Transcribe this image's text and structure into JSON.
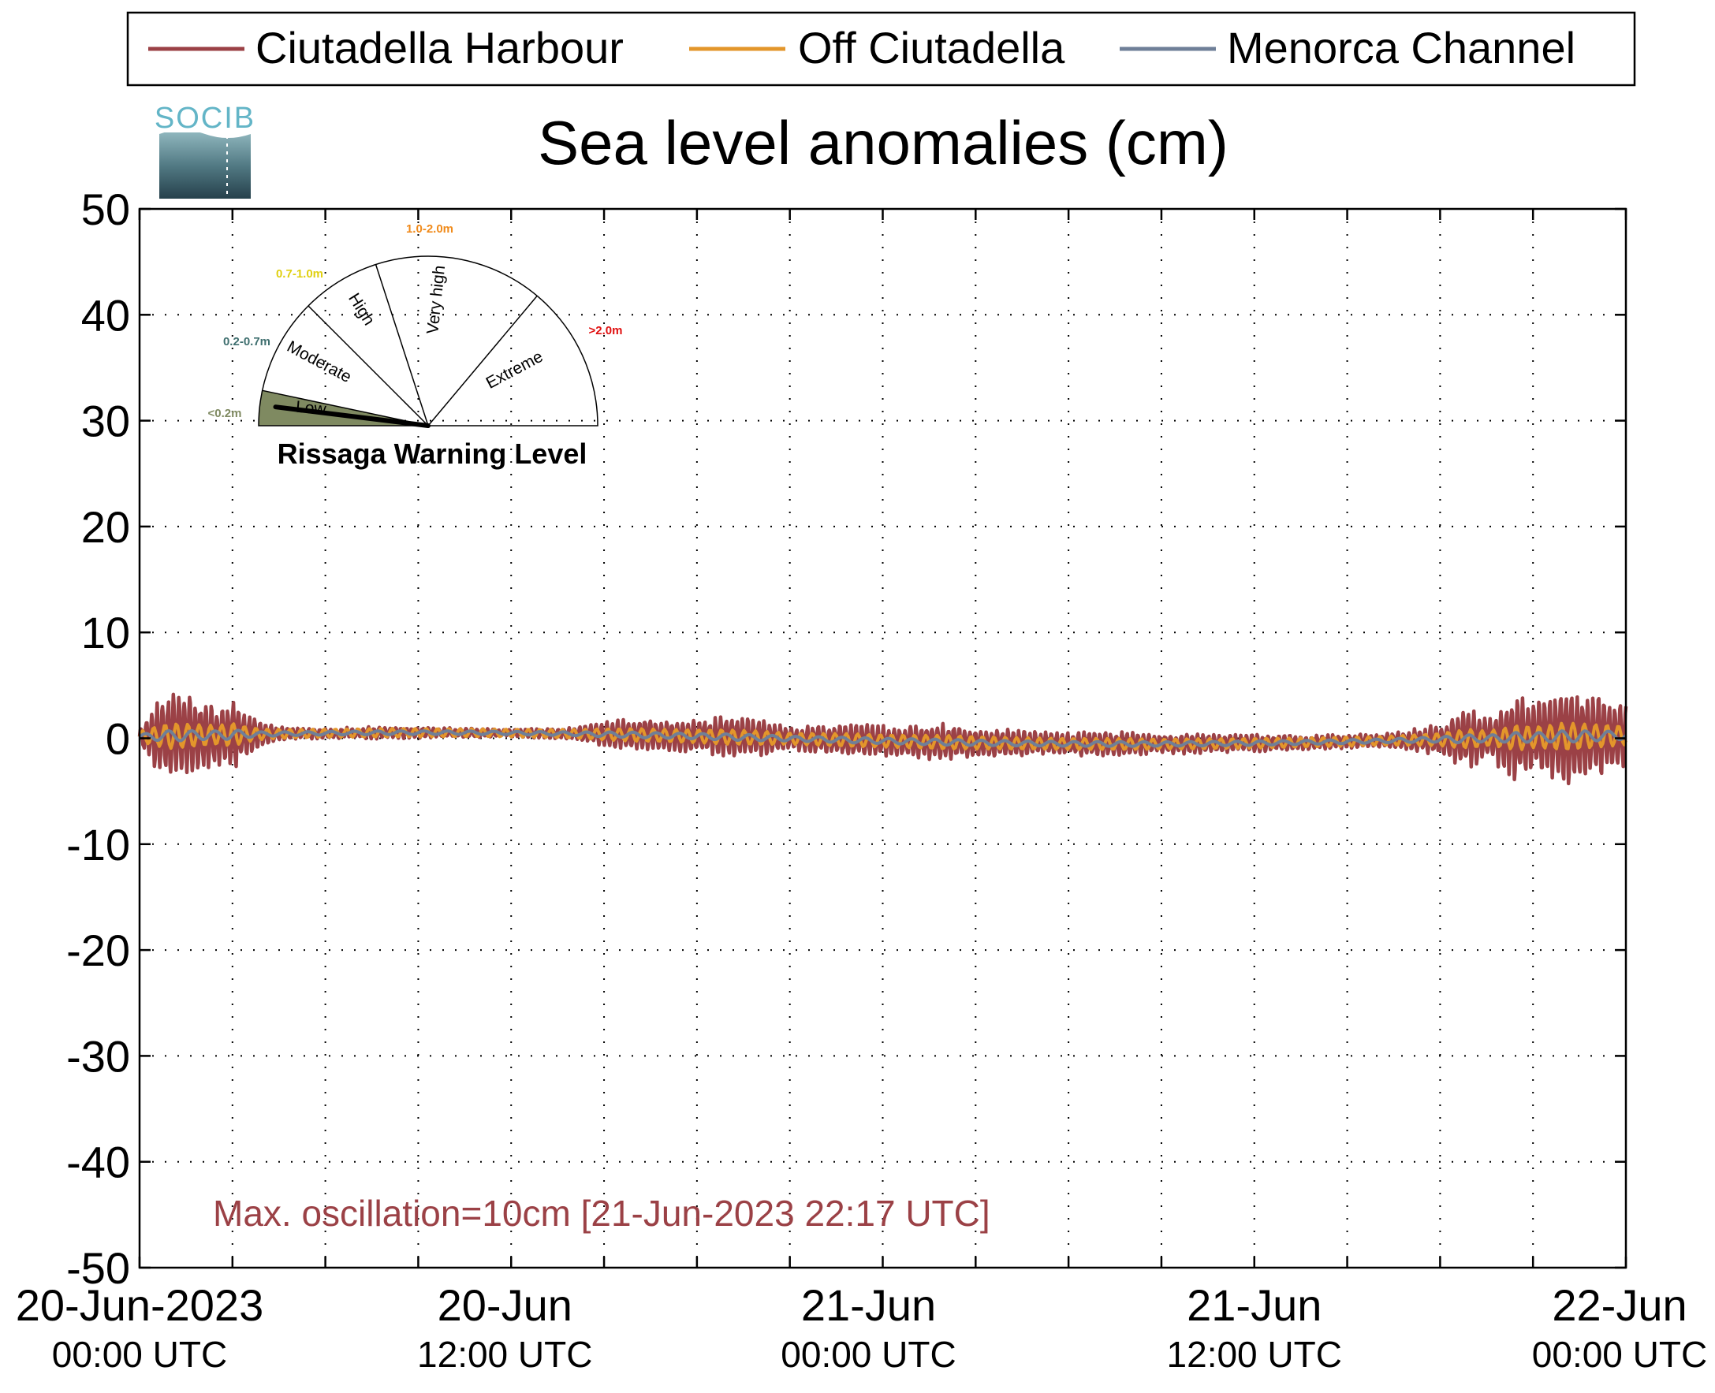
{
  "legend": {
    "entries": [
      {
        "label": "Ciutadella Harbour",
        "color": "#9b4146"
      },
      {
        "label": "Off Ciutadella",
        "color": "#e3962b"
      },
      {
        "label": "Menorca Channel",
        "color": "#6f7f98"
      }
    ],
    "placement": "top"
  },
  "logo": {
    "text": "SOCIB"
  },
  "gauge": {
    "title": "Rissaga Warning Level",
    "level_value": "Low",
    "sectors": [
      {
        "name": "Low",
        "range": "<0.2m",
        "range_color": "#7f8a61",
        "fill": "#7f8a61"
      },
      {
        "name": "Moderate",
        "range": "0.2-0.7m",
        "range_color": "#3f6f6f",
        "fill": "none"
      },
      {
        "name": "High",
        "range": "0.7-1.0m",
        "range_color": "#e0d010",
        "fill": "none"
      },
      {
        "name": "Very high",
        "range": "1.0-2.0m",
        "range_color": "#f08a1a",
        "fill": "none"
      },
      {
        "name": "Extreme",
        "range": ">2.0m",
        "range_color": "#e01010",
        "fill": "none"
      }
    ]
  },
  "annotation": {
    "text": "Max. oscillation=10cm [21-Jun-2023 22:17 UTC]",
    "color": "#9b4146"
  },
  "chart_data": {
    "type": "line",
    "title": "Sea level anomalies (cm)",
    "xlabel": "",
    "ylabel": "",
    "ylim": [
      -50,
      50
    ],
    "yticks": [
      "50",
      "40",
      "30",
      "20",
      "10",
      "0",
      "-10",
      "-20",
      "-30",
      "-40",
      "-50"
    ],
    "xlim_hours": [
      0,
      48
    ],
    "xticks": [
      {
        "hours": 0,
        "line1": "20-Jun-2023",
        "line2": "00:00 UTC"
      },
      {
        "hours": 12,
        "line1": "20-Jun",
        "line2": "12:00 UTC"
      },
      {
        "hours": 24,
        "line1": "21-Jun",
        "line2": "00:00 UTC"
      },
      {
        "hours": 36,
        "line1": "21-Jun",
        "line2": "12:00 UTC"
      },
      {
        "hours": 48,
        "line1": "22-Jun",
        "line2": "00:00 UTC"
      }
    ],
    "grid": true,
    "series": [
      {
        "name": "Ciutadella Harbour",
        "color": "#9b4146",
        "envelope_hours": [
          0,
          0.5,
          1,
          1.5,
          2,
          2.5,
          3,
          3.5,
          4,
          5,
          6,
          8,
          10,
          12,
          14,
          15,
          16,
          17,
          18,
          19,
          20,
          21,
          22,
          23,
          24,
          25,
          26,
          27,
          28,
          29,
          30,
          31,
          32,
          33,
          34,
          35,
          36,
          37,
          38,
          39,
          40,
          41,
          42,
          42.5,
          43,
          43.5,
          44,
          44.5,
          45,
          45.5,
          46,
          46.5,
          47,
          47.5,
          48
        ],
        "envelope_cm": [
          1,
          3,
          4.5,
          4,
          3.5,
          3,
          4,
          2,
          1,
          0.6,
          0.5,
          0.6,
          0.5,
          0.4,
          0.6,
          1.2,
          1.6,
          1.5,
          1.6,
          2,
          1.8,
          1.2,
          1.4,
          1.6,
          1.5,
          1.6,
          1.8,
          1.5,
          1.4,
          1.2,
          1.2,
          1.2,
          1.2,
          0.9,
          1.0,
          0.9,
          0.9,
          0.8,
          0.7,
          0.8,
          0.6,
          1.0,
          1.5,
          2.5,
          3,
          2,
          3,
          4.5,
          3.5,
          4,
          5,
          4.5,
          4,
          3.5,
          3
        ],
        "cycle_minutes": 10.5
      },
      {
        "name": "Off Ciutadella",
        "color": "#e3962b",
        "amplitude_cm": 0.7,
        "cycle_minutes": 22
      },
      {
        "name": "Menorca Channel",
        "color": "#6f7f98",
        "amplitude_cm": 0.3,
        "cycle_minutes": 45
      }
    ],
    "max_oscillation_cm": 10,
    "max_oscillation_time": "21-Jun-2023 22:17 UTC"
  }
}
